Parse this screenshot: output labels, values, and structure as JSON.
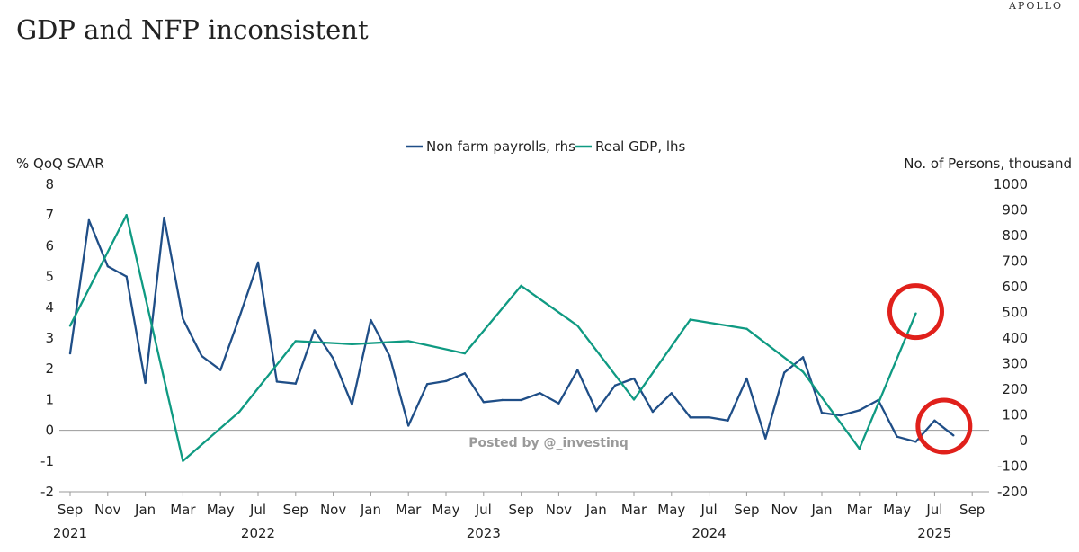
{
  "header": {
    "title": "GDP and NFP inconsistent",
    "brand": "APOLLO"
  },
  "watermark": "Posted by @_investinq",
  "chart_data": {
    "type": "line",
    "left_axis_title": "% QoQ SAAR",
    "right_axis_title": "No. of Persons, thousand",
    "left_ticks": [
      "8",
      "7",
      "6",
      "5",
      "4",
      "3",
      "2",
      "1",
      "0",
      "-1",
      "-2"
    ],
    "right_ticks": [
      "1000",
      "900",
      "800",
      "700",
      "600",
      "500",
      "400",
      "300",
      "200",
      "100",
      "0",
      "-100",
      "-200"
    ],
    "ylim_left": [
      -2,
      8
    ],
    "ylim_right": [
      -200,
      1000
    ],
    "x_month_labels": [
      "Sep",
      "Nov",
      "Jan",
      "Mar",
      "May",
      "Jul",
      "Sep",
      "Nov",
      "Jan",
      "Mar",
      "May",
      "Jul",
      "Sep",
      "Nov",
      "Jan",
      "Mar",
      "May",
      "Jul",
      "Sep",
      "Nov",
      "Jan",
      "Mar",
      "May",
      "Jul",
      "Sep"
    ],
    "x_year_labels": [
      {
        "label": "2021",
        "index": 0
      },
      {
        "label": "2022",
        "index": 5
      },
      {
        "label": "2023",
        "index": 11
      },
      {
        "label": "2024",
        "index": 17
      },
      {
        "label": "2025",
        "index": 23
      }
    ],
    "legend": {
      "position": "top-center"
    },
    "series": [
      {
        "name": "Non farm payrolls, rhs",
        "axis": "right",
        "color": "#1f4e87",
        "points": [
          {
            "m": 0,
            "v": 340
          },
          {
            "m": 1,
            "v": 860
          },
          {
            "m": 2,
            "v": 680
          },
          {
            "m": 3,
            "v": 640
          },
          {
            "m": 4,
            "v": 225
          },
          {
            "m": 5,
            "v": 870
          },
          {
            "m": 6,
            "v": 475
          },
          {
            "m": 7,
            "v": 330
          },
          {
            "m": 8,
            "v": 275
          },
          {
            "m": 9,
            "v": 480
          },
          {
            "m": 10,
            "v": 695
          },
          {
            "m": 11,
            "v": 230
          },
          {
            "m": 12,
            "v": 222
          },
          {
            "m": 13,
            "v": 430
          },
          {
            "m": 14,
            "v": 320
          },
          {
            "m": 15,
            "v": 140
          },
          {
            "m": 16,
            "v": 470
          },
          {
            "m": 17,
            "v": 330
          },
          {
            "m": 18,
            "v": 58
          },
          {
            "m": 19,
            "v": 220
          },
          {
            "m": 20,
            "v": 232
          },
          {
            "m": 21,
            "v": 262
          },
          {
            "m": 22,
            "v": 150
          },
          {
            "m": 23,
            "v": 158
          },
          {
            "m": 24,
            "v": 158
          },
          {
            "m": 25,
            "v": 185
          },
          {
            "m": 26,
            "v": 145
          },
          {
            "m": 27,
            "v": 275
          },
          {
            "m": 28,
            "v": 115
          },
          {
            "m": 29,
            "v": 215
          },
          {
            "m": 30,
            "v": 242
          },
          {
            "m": 31,
            "v": 112
          },
          {
            "m": 32,
            "v": 185
          },
          {
            "m": 33,
            "v": 90
          },
          {
            "m": 34,
            "v": 90
          },
          {
            "m": 35,
            "v": 78
          },
          {
            "m": 36,
            "v": 242
          },
          {
            "m": 37,
            "v": 8
          },
          {
            "m": 38,
            "v": 265
          },
          {
            "m": 39,
            "v": 325
          },
          {
            "m": 40,
            "v": 108
          },
          {
            "m": 41,
            "v": 98
          },
          {
            "m": 42,
            "v": 118
          },
          {
            "m": 43,
            "v": 158
          },
          {
            "m": 44,
            "v": 15
          },
          {
            "m": 45,
            "v": -5
          },
          {
            "m": 46,
            "v": 78
          },
          {
            "m": 47,
            "v": 20
          }
        ]
      },
      {
        "name": "Real GDP, lhs",
        "axis": "left",
        "color": "#0f9a82",
        "points": [
          {
            "m": 0,
            "v": 3.4
          },
          {
            "m": 3,
            "v": 7.0
          },
          {
            "m": 6,
            "v": -1.0
          },
          {
            "m": 9,
            "v": 0.6
          },
          {
            "m": 12,
            "v": 2.9
          },
          {
            "m": 15,
            "v": 2.8
          },
          {
            "m": 18,
            "v": 2.9
          },
          {
            "m": 21,
            "v": 2.5
          },
          {
            "m": 24,
            "v": 4.7
          },
          {
            "m": 27,
            "v": 3.4
          },
          {
            "m": 30,
            "v": 1.0
          },
          {
            "m": 33,
            "v": 3.6
          },
          {
            "m": 36,
            "v": 3.3
          },
          {
            "m": 39,
            "v": 1.9
          },
          {
            "m": 42,
            "v": -0.6
          },
          {
            "m": 45,
            "v": 3.8
          }
        ]
      }
    ],
    "annotations": [
      {
        "type": "circle",
        "color": "#e0201b",
        "series": "Real GDP, lhs",
        "m": 45
      },
      {
        "type": "circle",
        "color": "#e0201b",
        "series": "Non farm payrolls, rhs",
        "m": 46.5
      }
    ]
  }
}
